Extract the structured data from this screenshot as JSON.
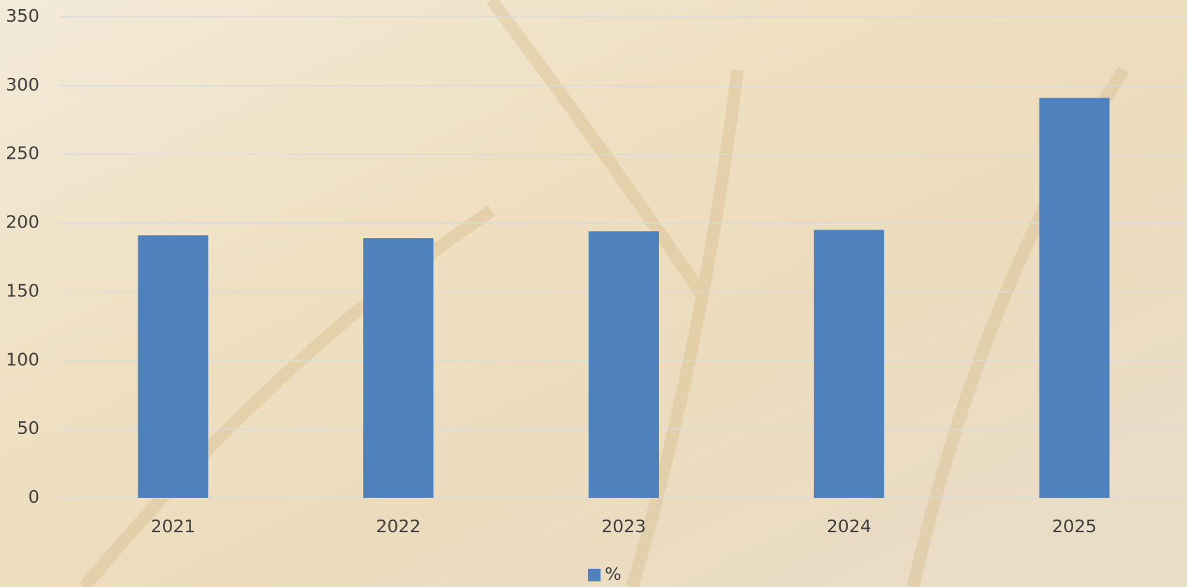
{
  "chart_data": {
    "type": "bar",
    "categories": [
      "2021",
      "2022",
      "2023",
      "2024",
      "2025"
    ],
    "series": [
      {
        "name": "%",
        "color": "#4f81bd",
        "values": [
          191,
          189,
          194,
          195,
          291
        ]
      }
    ],
    "ylim": [
      0,
      350
    ],
    "yticks": [
      0,
      50,
      100,
      150,
      200,
      250,
      300,
      350
    ],
    "grid": true,
    "legend": "bottom"
  }
}
